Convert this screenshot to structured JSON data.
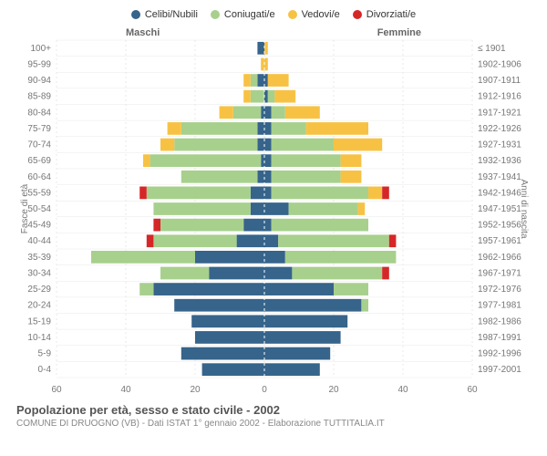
{
  "title": "Popolazione per età, sesso e stato civile - 2002",
  "subtitle": "COMUNE DI DRUOGNO (VB) - Dati ISTAT 1° gennaio 2002 - Elaborazione TUTTITALIA.IT",
  "legend": [
    {
      "label": "Celibi/Nubili",
      "color": "#36648b"
    },
    {
      "label": "Coniugati/e",
      "color": "#a8d08d"
    },
    {
      "label": "Vedovi/e",
      "color": "#f7c244"
    },
    {
      "label": "Divorziati/e",
      "color": "#d62728"
    }
  ],
  "side_left_title": "Maschi",
  "side_right_title": "Femmine",
  "y_left_title": "Fasce di età",
  "y_right_title": "Anni di nascita",
  "age_labels": [
    "0-4",
    "5-9",
    "10-14",
    "15-19",
    "20-24",
    "25-29",
    "30-34",
    "35-39",
    "40-44",
    "45-49",
    "50-54",
    "55-59",
    "60-64",
    "65-69",
    "70-74",
    "75-79",
    "80-84",
    "85-89",
    "90-94",
    "95-99",
    "100+"
  ],
  "birth_year_labels": [
    "1997-2001",
    "1992-1996",
    "1987-1991",
    "1982-1986",
    "1977-1981",
    "1972-1976",
    "1967-1971",
    "1962-1966",
    "1957-1961",
    "1952-1956",
    "1947-1951",
    "1942-1946",
    "1937-1941",
    "1932-1936",
    "1927-1931",
    "1922-1926",
    "1917-1921",
    "1912-1916",
    "1907-1911",
    "1902-1906",
    "≤ 1901"
  ],
  "xlim": 60,
  "xtick_step": 20,
  "male": [
    {
      "cel": 18,
      "con": 0,
      "ved": 0,
      "div": 0
    },
    {
      "cel": 24,
      "con": 0,
      "ved": 0,
      "div": 0
    },
    {
      "cel": 20,
      "con": 0,
      "ved": 0,
      "div": 0
    },
    {
      "cel": 21,
      "con": 0,
      "ved": 0,
      "div": 0
    },
    {
      "cel": 26,
      "con": 0,
      "ved": 0,
      "div": 0
    },
    {
      "cel": 32,
      "con": 4,
      "ved": 0,
      "div": 0
    },
    {
      "cel": 16,
      "con": 14,
      "ved": 0,
      "div": 0
    },
    {
      "cel": 20,
      "con": 30,
      "ved": 0,
      "div": 0
    },
    {
      "cel": 8,
      "con": 24,
      "ved": 0,
      "div": 2
    },
    {
      "cel": 6,
      "con": 24,
      "ved": 0,
      "div": 2
    },
    {
      "cel": 4,
      "con": 28,
      "ved": 0,
      "div": 0
    },
    {
      "cel": 4,
      "con": 30,
      "ved": 0,
      "div": 2
    },
    {
      "cel": 2,
      "con": 22,
      "ved": 0,
      "div": 0
    },
    {
      "cel": 1,
      "con": 32,
      "ved": 2,
      "div": 0
    },
    {
      "cel": 2,
      "con": 24,
      "ved": 4,
      "div": 0
    },
    {
      "cel": 2,
      "con": 22,
      "ved": 4,
      "div": 0
    },
    {
      "cel": 1,
      "con": 8,
      "ved": 4,
      "div": 0
    },
    {
      "cel": 0,
      "con": 4,
      "ved": 2,
      "div": 0
    },
    {
      "cel": 2,
      "con": 2,
      "ved": 2,
      "div": 0
    },
    {
      "cel": 0,
      "con": 0,
      "ved": 1,
      "div": 0
    },
    {
      "cel": 2,
      "con": 0,
      "ved": 0,
      "div": 0
    }
  ],
  "female": [
    {
      "cel": 16,
      "con": 0,
      "ved": 0,
      "div": 0
    },
    {
      "cel": 19,
      "con": 0,
      "ved": 0,
      "div": 0
    },
    {
      "cel": 22,
      "con": 0,
      "ved": 0,
      "div": 0
    },
    {
      "cel": 24,
      "con": 0,
      "ved": 0,
      "div": 0
    },
    {
      "cel": 28,
      "con": 2,
      "ved": 0,
      "div": 0
    },
    {
      "cel": 20,
      "con": 10,
      "ved": 0,
      "div": 0
    },
    {
      "cel": 8,
      "con": 26,
      "ved": 0,
      "div": 2
    },
    {
      "cel": 6,
      "con": 32,
      "ved": 0,
      "div": 0
    },
    {
      "cel": 4,
      "con": 32,
      "ved": 0,
      "div": 2
    },
    {
      "cel": 2,
      "con": 28,
      "ved": 0,
      "div": 0
    },
    {
      "cel": 7,
      "con": 20,
      "ved": 2,
      "div": 0
    },
    {
      "cel": 2,
      "con": 28,
      "ved": 4,
      "div": 2
    },
    {
      "cel": 2,
      "con": 20,
      "ved": 6,
      "div": 0
    },
    {
      "cel": 2,
      "con": 20,
      "ved": 6,
      "div": 0
    },
    {
      "cel": 2,
      "con": 18,
      "ved": 14,
      "div": 0
    },
    {
      "cel": 2,
      "con": 10,
      "ved": 18,
      "div": 0
    },
    {
      "cel": 2,
      "con": 4,
      "ved": 10,
      "div": 0
    },
    {
      "cel": 1,
      "con": 2,
      "ved": 6,
      "div": 0
    },
    {
      "cel": 1,
      "con": 0,
      "ved": 6,
      "div": 0
    },
    {
      "cel": 0,
      "con": 0,
      "ved": 1,
      "div": 0
    },
    {
      "cel": 0,
      "con": 0,
      "ved": 1,
      "div": 0
    }
  ],
  "colors": {
    "grid": "#e8e8e8",
    "axis_text": "#777777",
    "center_line": "#ffffff",
    "bg": "#ffffff"
  },
  "fonts": {
    "axis": 10,
    "legend": 11,
    "title": 13,
    "subtitle": 10
  }
}
